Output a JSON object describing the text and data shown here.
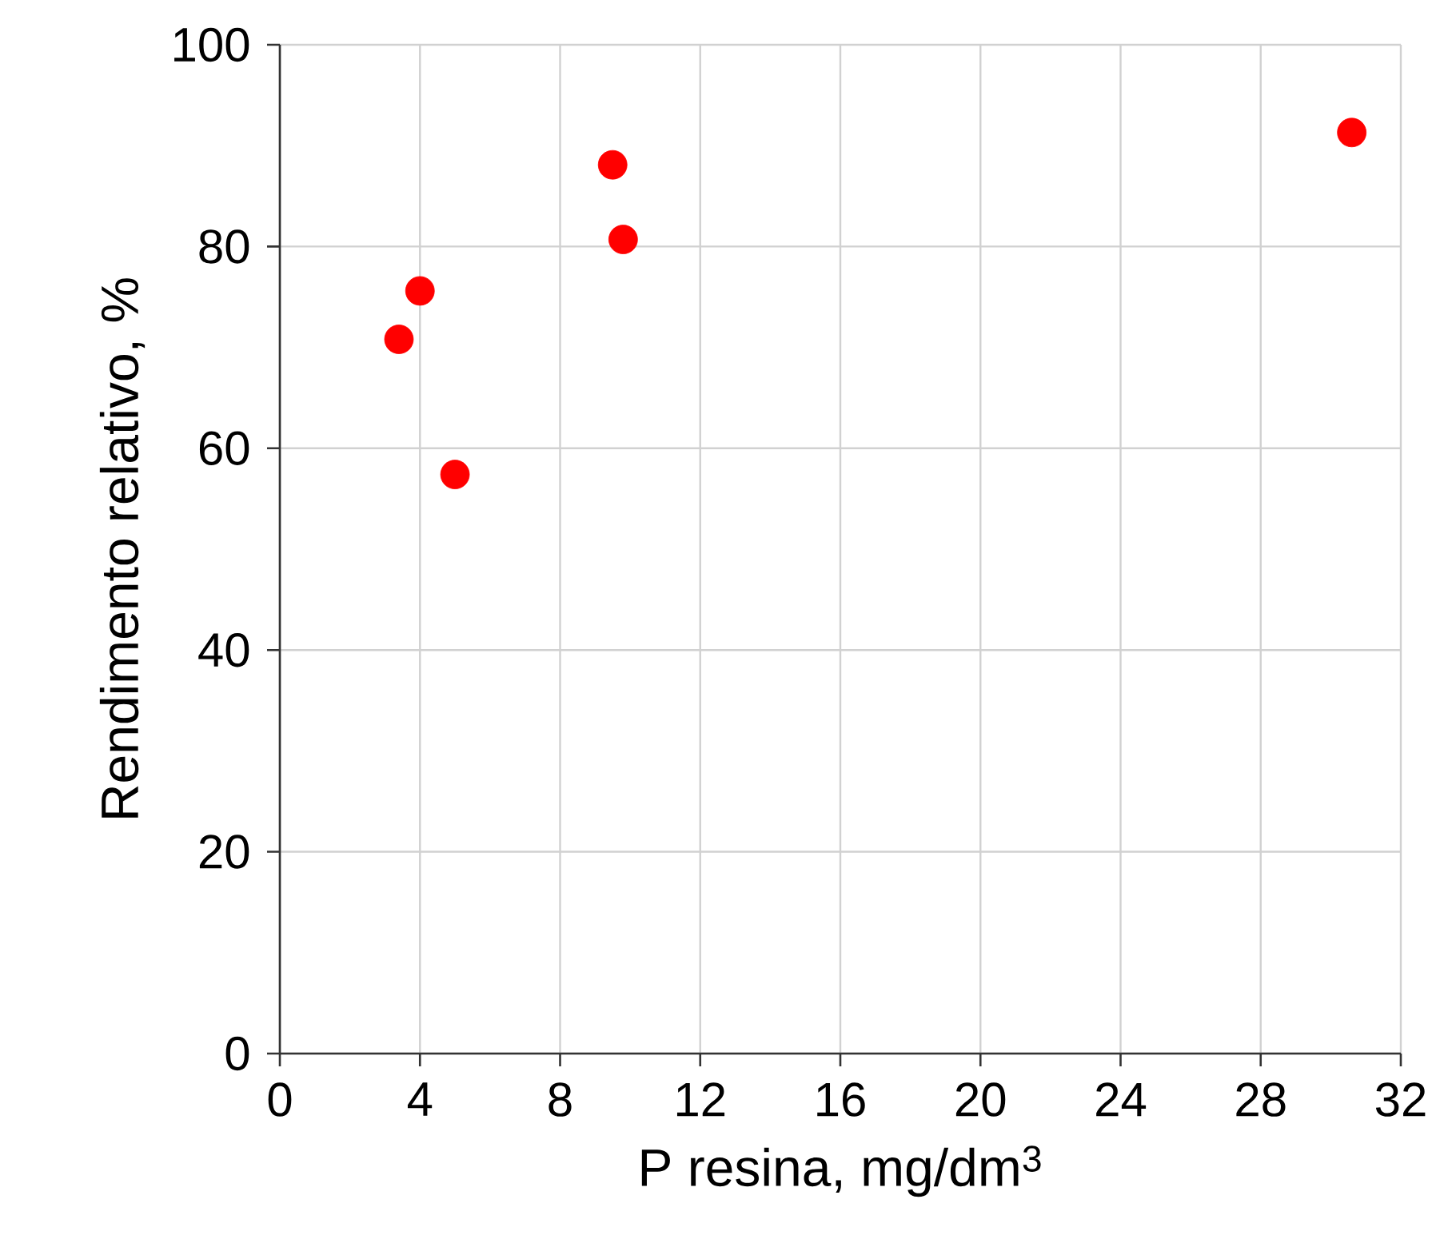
{
  "chart_data": {
    "type": "scatter",
    "xlabel": "P resina, mg/dm$^{3}$",
    "ylabel": "Rendimento relativo, %",
    "x": [
      3.4,
      4.0,
      5.0,
      9.5,
      9.8,
      30.6
    ],
    "series": [
      {
        "color": "#ff0000",
        "values": [
          70.8,
          75.6,
          57.4,
          88.1,
          80.7,
          91.3
        ]
      }
    ],
    "xlim": [
      0,
      32
    ],
    "xticks": [
      0,
      4,
      8,
      12,
      16,
      20,
      24,
      28,
      32
    ],
    "ylim": [
      0,
      100
    ],
    "yticks": [
      0,
      20,
      40,
      60,
      80,
      100
    ],
    "grid": true,
    "marker": "circle"
  }
}
